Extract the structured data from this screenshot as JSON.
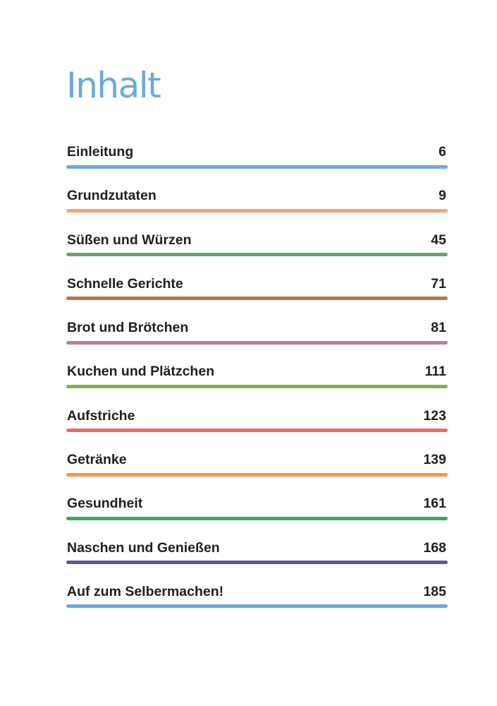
{
  "title": "Inhalt",
  "entries": [
    {
      "label": "Einleitung",
      "page": "6",
      "color": "#6aaad8"
    },
    {
      "label": "Grundzutaten",
      "page": "9",
      "color": "#f0a676"
    },
    {
      "label": "Süßen und Würzen",
      "page": "45",
      "color": "#6da16f"
    },
    {
      "label": "Schnelle Gerichte",
      "page": "71",
      "color": "#b97449"
    },
    {
      "label": "Brot und Brötchen",
      "page": "81",
      "color": "#b97f92"
    },
    {
      "label": "Kuchen und Plätzchen",
      "page": "111",
      "color": "#88b04f"
    },
    {
      "label": "Aufstriche",
      "page": "123",
      "color": "#e47068"
    },
    {
      "label": "Getränke",
      "page": "139",
      "color": "#ef9a48"
    },
    {
      "label": "Gesundheit",
      "page": "161",
      "color": "#3fa660"
    },
    {
      "label": "Naschen und Genießen",
      "page": "168",
      "color": "#5d578a"
    },
    {
      "label": "Auf zum Selbermachen!",
      "page": "185",
      "color": "#6aaad8"
    }
  ]
}
